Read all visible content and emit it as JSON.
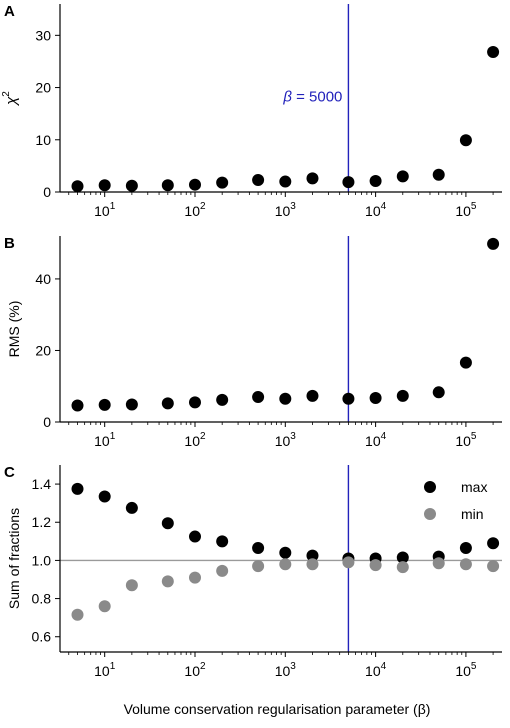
{
  "chart_data": [
    {
      "panel": "A",
      "type": "scatter",
      "x": [
        5,
        10,
        20,
        50,
        100,
        200,
        500,
        1000,
        2000,
        5000,
        10000,
        20000,
        50000,
        100000,
        200000
      ],
      "series": [
        {
          "values": [
            1.1,
            1.3,
            1.2,
            1.3,
            1.4,
            1.8,
            2.3,
            2.0,
            2.6,
            1.9,
            2.1,
            3.0,
            3.3,
            9.9,
            26.8
          ],
          "color": "#000000"
        }
      ],
      "xscale": "log",
      "xlim": [
        3.2,
        251000
      ],
      "ylim": [
        0,
        36
      ],
      "yticks": [
        0,
        10,
        20,
        30
      ],
      "ylabel_base": "χ",
      "ylabel_sup": "2",
      "vline": {
        "x": 5000,
        "color": "#2222bb"
      },
      "annotation": {
        "symbol": "β",
        "text": " = 5000"
      }
    },
    {
      "panel": "B",
      "type": "scatter",
      "x": [
        5,
        10,
        20,
        50,
        100,
        200,
        500,
        1000,
        2000,
        5000,
        10000,
        20000,
        50000,
        100000,
        200000
      ],
      "series": [
        {
          "values": [
            4.6,
            4.8,
            4.9,
            5.2,
            5.5,
            6.2,
            7.0,
            6.5,
            7.3,
            6.5,
            6.7,
            7.3,
            8.3,
            16.6,
            49.8
          ],
          "color": "#000000"
        }
      ],
      "xscale": "log",
      "xlim": [
        3.2,
        251000
      ],
      "ylim": [
        0,
        52
      ],
      "yticks": [
        0,
        20,
        40
      ],
      "ylabel": "RMS (%)",
      "vline": {
        "x": 5000,
        "color": "#2222bb"
      }
    },
    {
      "panel": "C",
      "type": "scatter",
      "x": [
        5,
        10,
        20,
        50,
        100,
        200,
        500,
        1000,
        2000,
        5000,
        10000,
        20000,
        50000,
        100000,
        200000
      ],
      "series": [
        {
          "name": "max",
          "values": [
            1.375,
            1.335,
            1.275,
            1.195,
            1.125,
            1.1,
            1.065,
            1.04,
            1.025,
            1.01,
            1.01,
            1.015,
            1.02,
            1.065,
            1.09
          ],
          "color": "#000000"
        },
        {
          "name": "min",
          "values": [
            0.715,
            0.76,
            0.87,
            0.89,
            0.91,
            0.945,
            0.97,
            0.98,
            0.98,
            0.99,
            0.975,
            0.965,
            0.985,
            0.98,
            0.97
          ],
          "color": "#8a8a8a"
        }
      ],
      "xscale": "log",
      "xlim": [
        3.2,
        251000
      ],
      "ylim": [
        0.52,
        1.5
      ],
      "yticks": [
        0.6,
        0.8,
        1.0,
        1.2,
        1.4
      ],
      "ytick_labels": [
        "0.6",
        "0.8",
        "1.0",
        "1.2",
        "1.4"
      ],
      "ylabel": "Sum of fractions",
      "xlabel": "Volume conservation regularisation parameter (β)",
      "hline": {
        "y": 1.0,
        "color": "#9a9a9a"
      },
      "vline": {
        "x": 5000,
        "color": "#2222bb"
      },
      "legend": "top-right"
    }
  ],
  "xtick_exponents": [
    "1",
    "2",
    "3",
    "4",
    "5"
  ],
  "xtick_base": "10"
}
